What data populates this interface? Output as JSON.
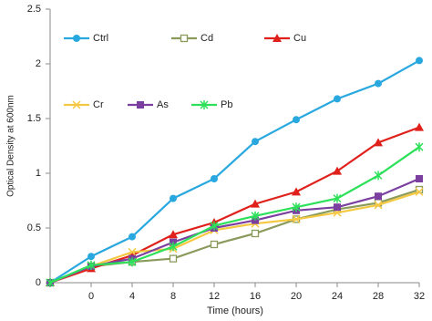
{
  "chart_data": {
    "type": "line",
    "x_label": "Time (hours)",
    "y_label": "Optical Density at 600nm",
    "x": [
      -4,
      0,
      4,
      8,
      12,
      16,
      20,
      24,
      28,
      32
    ],
    "xlim": [
      -4,
      32
    ],
    "xticks": [
      0,
      4,
      8,
      12,
      16,
      20,
      24,
      28,
      32
    ],
    "ylim": [
      0,
      2.5
    ],
    "yticks": [
      0,
      0.5,
      1,
      1.5,
      2,
      2.5
    ],
    "grid": false,
    "legend": "upper left",
    "series": [
      {
        "name": "Ctrl",
        "color": "#29a8e0",
        "marker": "circle",
        "values": [
          0,
          0.24,
          0.42,
          0.77,
          0.95,
          1.29,
          1.49,
          1.68,
          1.82,
          2.03
        ]
      },
      {
        "name": "Cd",
        "color": "#8a9a5b",
        "marker": "square-open",
        "values": [
          0,
          0.15,
          0.19,
          0.22,
          0.35,
          0.45,
          0.58,
          0.67,
          0.73,
          0.85
        ]
      },
      {
        "name": "Cu",
        "color": "#e0201b",
        "marker": "triangle",
        "values": [
          0,
          0.13,
          0.25,
          0.44,
          0.55,
          0.72,
          0.83,
          1.02,
          1.28,
          1.42
        ]
      },
      {
        "name": "Cr",
        "color": "#f5c842",
        "marker": "x",
        "values": [
          0,
          0.15,
          0.28,
          0.31,
          0.48,
          0.54,
          0.58,
          0.64,
          0.71,
          0.83
        ]
      },
      {
        "name": "As",
        "color": "#7b3fa0",
        "marker": "square",
        "values": [
          0,
          0.15,
          0.22,
          0.37,
          0.5,
          0.57,
          0.66,
          0.69,
          0.79,
          0.95
        ]
      },
      {
        "name": "Pb",
        "color": "#2de05a",
        "marker": "star",
        "values": [
          0,
          0.16,
          0.19,
          0.33,
          0.52,
          0.61,
          0.69,
          0.77,
          0.98,
          1.24
        ]
      }
    ]
  }
}
